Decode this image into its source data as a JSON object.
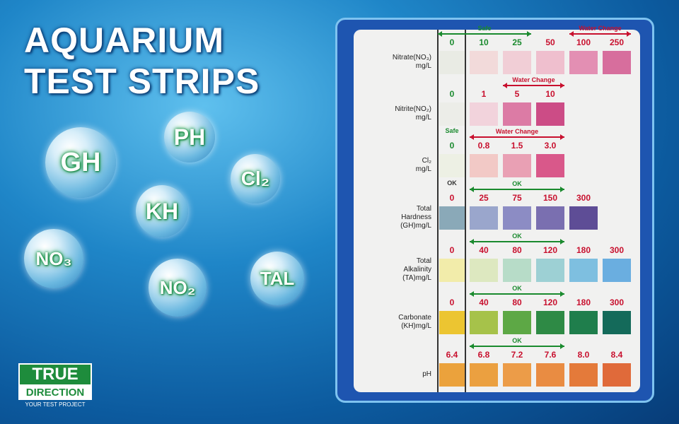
{
  "title": [
    "AQUARIUM",
    "TEST STRIPS"
  ],
  "bubbles": [
    "GH",
    "PH",
    "Cl₂",
    "KH",
    "NO₃",
    "NO₂",
    "TAL"
  ],
  "logo": {
    "line1": "TRUE",
    "line2": "DIRECTION",
    "tagline": "YOUR TEST PROJECT"
  },
  "chart": {
    "rows": [
      {
        "label": [
          "Nitrate(NO₃)",
          "mg/L"
        ],
        "values": [
          "0",
          "10",
          "25",
          "50",
          "100",
          "250"
        ],
        "colors": [
          "#e9ebe4",
          "#f2dada",
          "#f1ced6",
          "#efbfce",
          "#e38fb3",
          "#d76e9d"
        ],
        "notes": [
          "Safe",
          "Water Change"
        ]
      },
      {
        "label": [
          "Nitrite(NO₂)",
          "mg/L"
        ],
        "values": [
          "0",
          "1",
          "5",
          "10"
        ],
        "colors": [
          "#ecede8",
          "#f2d3dc",
          "#dc7ba5",
          "#cc4c86"
        ],
        "notes": [
          "Water Change"
        ]
      },
      {
        "label": [
          "Cl₂",
          "mg/L"
        ],
        "values": [
          "0",
          "0.8",
          "1.5",
          "3.0"
        ],
        "colors": [
          "#edf0e4",
          "#f2c9c6",
          "#e9a0b4",
          "#d9588a"
        ],
        "notes": [
          "Safe",
          "Water Change",
          "OK"
        ]
      },
      {
        "label": [
          "Total",
          "Hardness",
          "(GH)mg/L"
        ],
        "values": [
          "0",
          "25",
          "75",
          "150",
          "300"
        ],
        "colors": [
          "#8aa9b8",
          "#9aa6cc",
          "#8c8cc4",
          "#7a6fb0",
          "#5e4d96"
        ],
        "notes": [
          "OK"
        ]
      },
      {
        "label": [
          "Total",
          "Alkalinity",
          "(TA)mg/L"
        ],
        "values": [
          "0",
          "40",
          "80",
          "120",
          "180",
          "300"
        ],
        "colors": [
          "#f2ecaa",
          "#dde8c0",
          "#b7dcc8",
          "#9dd0d4",
          "#7ebfe0",
          "#6aaee0"
        ],
        "notes": [
          "OK"
        ]
      },
      {
        "label": [
          "Carbonate",
          "(KH)mg/L"
        ],
        "values": [
          "0",
          "40",
          "80",
          "120",
          "180",
          "300"
        ],
        "colors": [
          "#ecc531",
          "#a6c24a",
          "#5da845",
          "#2e8a45",
          "#1f7e4c",
          "#146a5a"
        ],
        "notes": [
          "OK"
        ]
      },
      {
        "label": [
          "pH"
        ],
        "values": [
          "6.4",
          "6.8",
          "7.2",
          "7.6",
          "8.0",
          "8.4"
        ],
        "colors": [
          "#eba23c",
          "#eba040",
          "#ec9c48",
          "#e98c42",
          "#e47a3a",
          "#e06a3a"
        ],
        "notes": [
          "OK"
        ]
      }
    ]
  }
}
